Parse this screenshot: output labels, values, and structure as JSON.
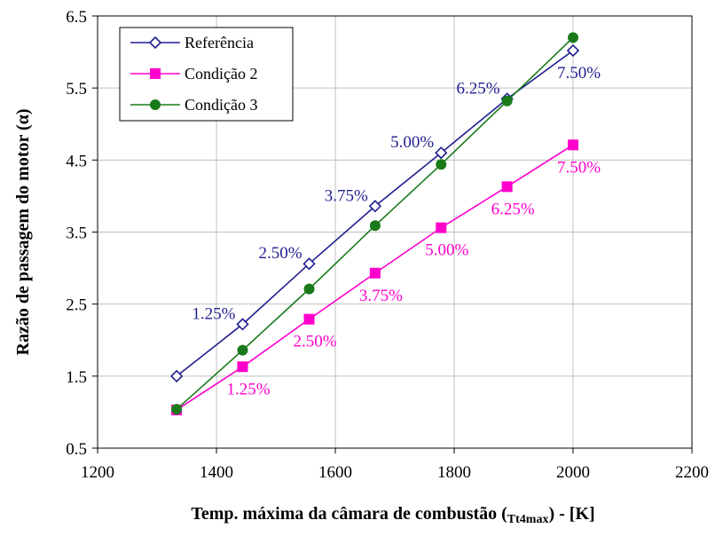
{
  "chart_data": {
    "type": "line",
    "title": "",
    "xlabel": "Temp. máxima da câmara de combustão (Tt4max) - [K]",
    "xlabel_main": "Temp. máxima da câmara de combustão (",
    "xlabel_sub": "Tt4max",
    "xlabel_tail": ") - [K]",
    "ylabel": "Razão de passagem do motor (α)",
    "xlim": [
      1200,
      2200
    ],
    "ylim": [
      0.5,
      6.5
    ],
    "xticks": [
      1200,
      1400,
      1600,
      1800,
      2000,
      2200
    ],
    "yticks": [
      "0.5",
      "1.5",
      "2.5",
      "3.5",
      "4.5",
      "5.5",
      "6.5"
    ],
    "grid": true,
    "legend_position": "top-left",
    "series": [
      {
        "name": "Referência",
        "color": "#1f1f8f",
        "marker": "diamond-open",
        "x": [
          1333,
          1444,
          1556,
          1667,
          1778,
          1889,
          2000
        ],
        "y": [
          1.5,
          2.22,
          3.06,
          3.86,
          4.6,
          5.35,
          6.02
        ],
        "labels": [
          "",
          "1.25%",
          "2.50%",
          "3.75%",
          "5.00%",
          "6.25%",
          "7.50%"
        ]
      },
      {
        "name": "Condição 2",
        "color": "#ff00cc",
        "marker": "square",
        "x": [
          1333,
          1444,
          1556,
          1667,
          1778,
          1889,
          2000
        ],
        "y": [
          1.03,
          1.63,
          2.29,
          2.93,
          3.56,
          4.13,
          4.71
        ],
        "labels": [
          "",
          "1.25%",
          "2.50%",
          "3.75%",
          "5.00%",
          "6.25%",
          "7.50%"
        ]
      },
      {
        "name": "Condição 3",
        "color": "#1a7a1a",
        "marker": "circle",
        "x": [
          1333,
          1444,
          1556,
          1667,
          1778,
          1889,
          2000
        ],
        "y": [
          1.04,
          1.86,
          2.71,
          3.59,
          4.44,
          5.32,
          6.2
        ],
        "labels": []
      }
    ]
  }
}
